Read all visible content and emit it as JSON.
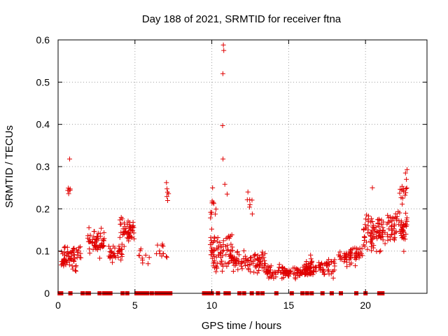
{
  "chart_data": {
    "type": "scatter",
    "title": "Day 188 of 2021, SRMTID for receiver ftna",
    "xlabel": "GPS time / hours",
    "ylabel": "SRMTID / TECUs",
    "xlim": [
      0,
      24
    ],
    "ylim": [
      0,
      0.6
    ],
    "xticks": [
      0,
      5,
      10,
      15,
      20
    ],
    "yticks": [
      0,
      0.1,
      0.2,
      0.3,
      0.4,
      0.5,
      0.6
    ],
    "xtick_labels": [
      "0",
      "5",
      "10",
      "15",
      "20"
    ],
    "ytick_labels": [
      "0",
      "0.1",
      "0.2",
      "0.3",
      "0.4",
      "0.5",
      "0.6"
    ],
    "grid": true,
    "marker": "+",
    "color": "#e00000",
    "clusters": [
      {
        "x_range": [
          0.2,
          1.5
        ],
        "y_mean": 0.085,
        "y_spread": 0.03,
        "count": 70
      },
      {
        "x_range": [
          0.6,
          0.8
        ],
        "y_mean": 0.25,
        "y_spread": 0.03,
        "count": 6
      },
      {
        "x_range": [
          1.9,
          3.0
        ],
        "y_mean": 0.12,
        "y_spread": 0.03,
        "count": 60
      },
      {
        "x_range": [
          3.3,
          4.2
        ],
        "y_mean": 0.095,
        "y_spread": 0.02,
        "count": 35
      },
      {
        "x_range": [
          4.0,
          5.0
        ],
        "y_mean": 0.15,
        "y_spread": 0.03,
        "count": 55
      },
      {
        "x_range": [
          5.2,
          6.0
        ],
        "y_mean": 0.09,
        "y_spread": 0.02,
        "count": 10
      },
      {
        "x_range": [
          6.4,
          7.2
        ],
        "y_mean": 0.1,
        "y_spread": 0.02,
        "count": 12
      },
      {
        "x_range": [
          7.0,
          7.2
        ],
        "y_mean": 0.235,
        "y_spread": 0.02,
        "count": 5
      },
      {
        "x_range": [
          9.9,
          11.5
        ],
        "y_mean": 0.1,
        "y_spread": 0.05,
        "count": 90
      },
      {
        "x_range": [
          9.9,
          10.3
        ],
        "y_mean": 0.2,
        "y_spread": 0.03,
        "count": 10
      },
      {
        "x_range": [
          11.3,
          13.5
        ],
        "y_mean": 0.075,
        "y_spread": 0.025,
        "count": 90
      },
      {
        "x_range": [
          12.3,
          12.7
        ],
        "y_mean": 0.21,
        "y_spread": 0.02,
        "count": 6
      },
      {
        "x_range": [
          13.5,
          16.5
        ],
        "y_mean": 0.05,
        "y_spread": 0.015,
        "count": 130
      },
      {
        "x_range": [
          16.0,
          18.0
        ],
        "y_mean": 0.065,
        "y_spread": 0.025,
        "count": 80
      },
      {
        "x_range": [
          18.2,
          19.8
        ],
        "y_mean": 0.09,
        "y_spread": 0.025,
        "count": 60
      },
      {
        "x_range": [
          19.8,
          21.0
        ],
        "y_mean": 0.14,
        "y_spread": 0.04,
        "count": 70
      },
      {
        "x_range": [
          21.0,
          22.7
        ],
        "y_mean": 0.15,
        "y_spread": 0.04,
        "count": 90
      },
      {
        "x_range": [
          22.2,
          22.7
        ],
        "y_mean": 0.24,
        "y_spread": 0.03,
        "count": 15
      }
    ],
    "outliers": [
      {
        "x": 0.75,
        "y": 0.318
      },
      {
        "x": 10.75,
        "y": 0.588
      },
      {
        "x": 10.78,
        "y": 0.575
      },
      {
        "x": 10.72,
        "y": 0.52
      },
      {
        "x": 10.7,
        "y": 0.397
      },
      {
        "x": 10.73,
        "y": 0.318
      },
      {
        "x": 10.85,
        "y": 0.258
      },
      {
        "x": 11.0,
        "y": 0.235
      },
      {
        "x": 12.35,
        "y": 0.24
      },
      {
        "x": 7.05,
        "y": 0.262
      },
      {
        "x": 22.7,
        "y": 0.293
      },
      {
        "x": 22.6,
        "y": 0.285
      },
      {
        "x": 20.45,
        "y": 0.25
      },
      {
        "x": 10.05,
        "y": 0.25
      }
    ],
    "zero_points_x": [
      0.1,
      0.2,
      0.8,
      1.6,
      1.9,
      2.0,
      2.7,
      3.0,
      3.2,
      3.4,
      4.2,
      4.5,
      5.1,
      5.3,
      5.5,
      5.6,
      5.8,
      6.1,
      6.4,
      6.6,
      6.7,
      6.8,
      6.9,
      7.0,
      7.2,
      7.3,
      9.5,
      9.6,
      9.7,
      9.8,
      9.9,
      10.0,
      10.4,
      10.9,
      11.1,
      11.8,
      12.1,
      12.6,
      13.0,
      13.3,
      14.2,
      15.2,
      15.9,
      16.2,
      16.5,
      17.2,
      17.8,
      18.4,
      19.4,
      20.0,
      20.9,
      21.0,
      21.1
    ]
  }
}
